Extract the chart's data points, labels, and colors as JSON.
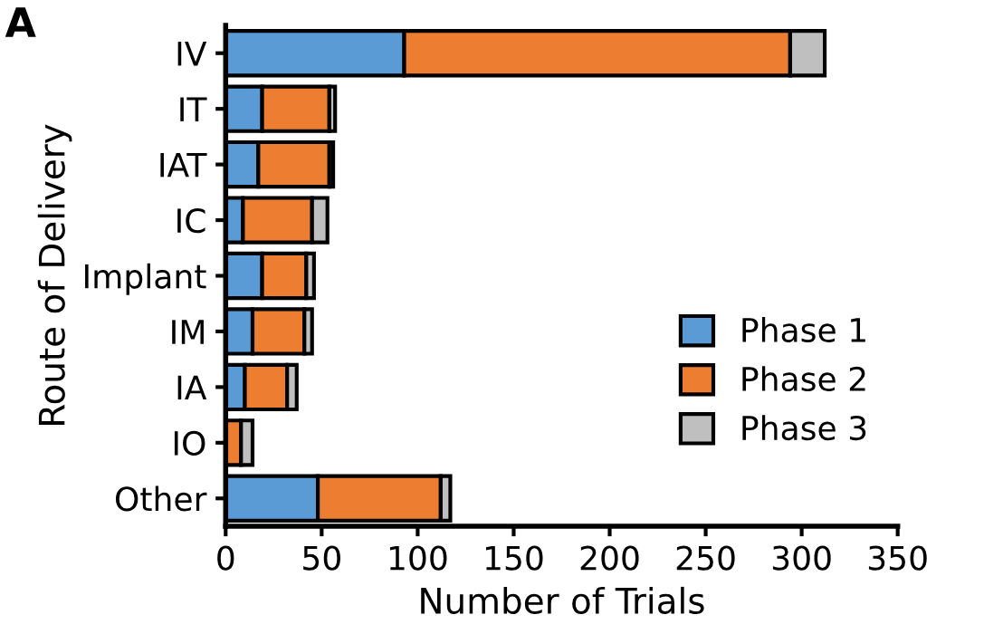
{
  "chart_data": {
    "type": "bar",
    "orientation": "horizontal",
    "stacked": true,
    "categories": [
      "IV",
      "IT",
      "IAT",
      "IC",
      "Implant",
      "IM",
      "IA",
      "IO",
      "Other"
    ],
    "series": [
      {
        "name": "Phase 1",
        "color": "#5b9bd5",
        "values": [
          93,
          19,
          17,
          9,
          19,
          14,
          10,
          0,
          48
        ]
      },
      {
        "name": "Phase 2",
        "color": "#ed7d31",
        "values": [
          201,
          35,
          37,
          36,
          23,
          27,
          22,
          8,
          64
        ]
      },
      {
        "name": "Phase 3",
        "color": "#bfbfbf",
        "values": [
          18,
          3,
          2,
          8,
          4,
          4,
          5,
          6,
          5
        ]
      }
    ],
    "xlabel": "Number of Trials",
    "ylabel": "Route of Delivery",
    "xlim": [
      0,
      350
    ],
    "xticks": [
      0,
      50,
      100,
      150,
      200,
      250,
      300,
      350
    ],
    "legend": "bottom right",
    "grid": false,
    "annotations": [
      "A"
    ]
  }
}
